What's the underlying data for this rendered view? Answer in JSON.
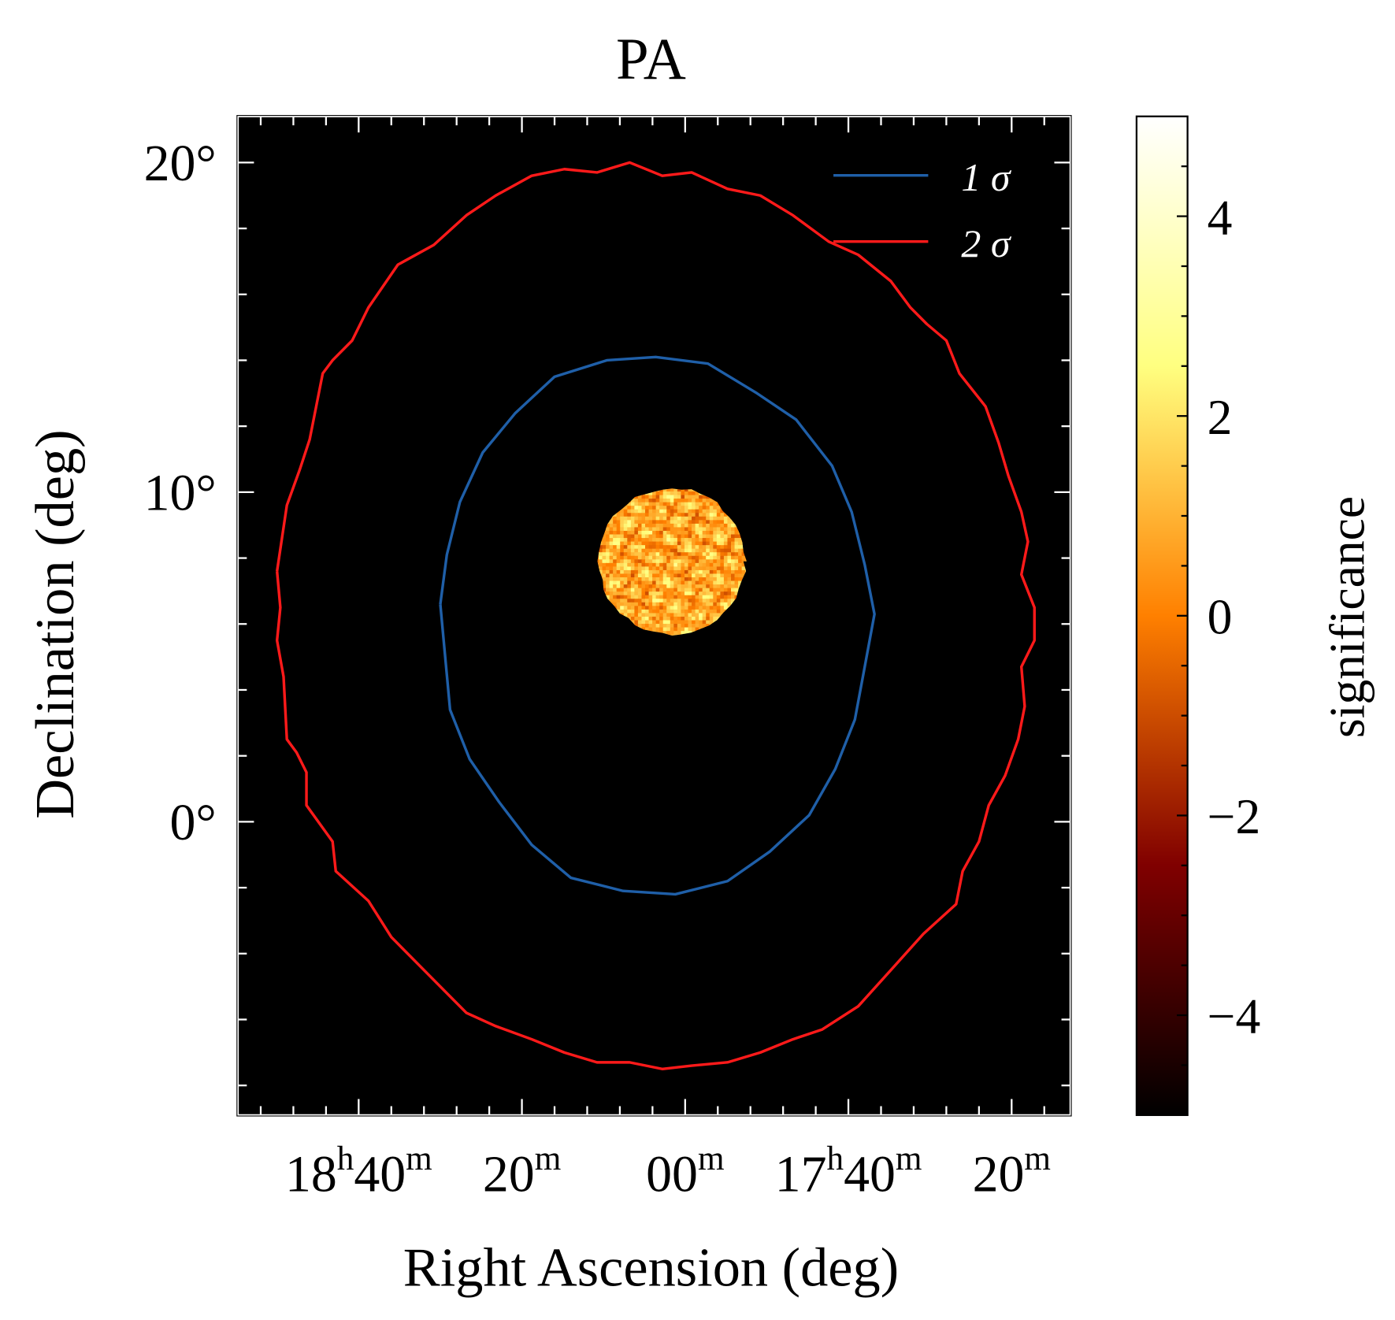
{
  "chart_data": {
    "type": "heatmap",
    "title": "PA",
    "xlabel": "Right Ascension (deg)",
    "ylabel": "Declination (deg)",
    "colorbar_label": "significance",
    "xlim": [
      283.7,
      258.2
    ],
    "ylim": [
      -8.9,
      21.4
    ],
    "clim": [
      -5,
      5
    ],
    "colormap": "afmhot",
    "grid": false,
    "x_ticks": [
      {
        "value": 280,
        "parts": [
          "18",
          "h",
          "40",
          "m"
        ]
      },
      {
        "value": 275,
        "parts": [
          "20",
          "m"
        ]
      },
      {
        "value": 270,
        "parts": [
          "00",
          "m"
        ]
      },
      {
        "value": 265,
        "parts": [
          "17",
          "h",
          "40",
          "m"
        ]
      },
      {
        "value": 260,
        "parts": [
          "20",
          "m"
        ]
      }
    ],
    "y_ticks": [
      {
        "value": 0,
        "label": "0°"
      },
      {
        "value": 10,
        "label": "10°"
      },
      {
        "value": 20,
        "label": "20°"
      }
    ],
    "colorbar_ticks": [
      {
        "value": -4,
        "label": "−4"
      },
      {
        "value": -2,
        "label": "−2"
      },
      {
        "value": 0,
        "label": "0"
      },
      {
        "value": 2,
        "label": "2"
      },
      {
        "value": 4,
        "label": "4"
      }
    ],
    "legend": {
      "position": "top-right",
      "entries": [
        {
          "label": "1 σ",
          "color": "#1f5fa8"
        },
        {
          "label": "2 σ",
          "color": "#ff1a1a"
        }
      ]
    },
    "significance_patch": {
      "center": [
        270.4,
        7.9
      ],
      "radius_deg": 2.25,
      "typical_range": [
        -1,
        3
      ]
    },
    "series": [
      {
        "name": "1 σ",
        "color": "#1f5fa8",
        "points": [
          [
            277.5,
            6.6
          ],
          [
            277.3,
            8.1
          ],
          [
            276.9,
            9.7
          ],
          [
            276.2,
            11.2
          ],
          [
            275.2,
            12.4
          ],
          [
            274.0,
            13.5
          ],
          [
            272.4,
            14.0
          ],
          [
            270.9,
            14.1
          ],
          [
            269.3,
            13.9
          ],
          [
            267.8,
            13.0
          ],
          [
            266.6,
            12.2
          ],
          [
            265.5,
            10.8
          ],
          [
            264.9,
            9.4
          ],
          [
            264.5,
            7.8
          ],
          [
            264.2,
            6.3
          ],
          [
            264.5,
            4.7
          ],
          [
            264.8,
            3.1
          ],
          [
            265.4,
            1.6
          ],
          [
            266.2,
            0.2
          ],
          [
            267.4,
            -0.9
          ],
          [
            268.7,
            -1.8
          ],
          [
            270.3,
            -2.2
          ],
          [
            271.9,
            -2.1
          ],
          [
            273.5,
            -1.7
          ],
          [
            274.7,
            -0.7
          ],
          [
            275.7,
            0.6
          ],
          [
            276.6,
            1.9
          ],
          [
            277.2,
            3.4
          ],
          [
            277.5,
            6.6
          ]
        ]
      },
      {
        "name": "2 σ",
        "color": "#ff1a1a",
        "points": [
          [
            282.5,
            7.6
          ],
          [
            282.2,
            9.6
          ],
          [
            281.8,
            10.7
          ],
          [
            281.5,
            11.6
          ],
          [
            281.3,
            12.6
          ],
          [
            281.1,
            13.6
          ],
          [
            280.8,
            14.0
          ],
          [
            280.2,
            14.6
          ],
          [
            279.7,
            15.6
          ],
          [
            278.8,
            16.9
          ],
          [
            277.7,
            17.5
          ],
          [
            276.7,
            18.4
          ],
          [
            275.8,
            19.0
          ],
          [
            274.7,
            19.6
          ],
          [
            273.7,
            19.8
          ],
          [
            272.7,
            19.7
          ],
          [
            271.7,
            20.0
          ],
          [
            270.7,
            19.6
          ],
          [
            269.8,
            19.7
          ],
          [
            268.7,
            19.2
          ],
          [
            267.7,
            19.0
          ],
          [
            266.7,
            18.4
          ],
          [
            265.6,
            17.6
          ],
          [
            264.7,
            17.2
          ],
          [
            263.7,
            16.4
          ],
          [
            263.1,
            15.6
          ],
          [
            262.6,
            15.1
          ],
          [
            262.0,
            14.6
          ],
          [
            261.6,
            13.6
          ],
          [
            260.8,
            12.6
          ],
          [
            260.4,
            11.5
          ],
          [
            260.1,
            10.5
          ],
          [
            259.7,
            9.4
          ],
          [
            259.5,
            8.5
          ],
          [
            259.7,
            7.5
          ],
          [
            259.3,
            6.5
          ],
          [
            259.3,
            5.5
          ],
          [
            259.7,
            4.7
          ],
          [
            259.6,
            3.5
          ],
          [
            259.8,
            2.5
          ],
          [
            260.2,
            1.4
          ],
          [
            260.7,
            0.5
          ],
          [
            261.0,
            -0.6
          ],
          [
            261.5,
            -1.5
          ],
          [
            261.7,
            -2.5
          ],
          [
            262.7,
            -3.4
          ],
          [
            263.7,
            -4.5
          ],
          [
            264.7,
            -5.6
          ],
          [
            265.8,
            -6.3
          ],
          [
            266.7,
            -6.6
          ],
          [
            267.7,
            -7.0
          ],
          [
            268.7,
            -7.3
          ],
          [
            269.8,
            -7.4
          ],
          [
            270.7,
            -7.5
          ],
          [
            271.7,
            -7.3
          ],
          [
            272.7,
            -7.3
          ],
          [
            273.7,
            -7.0
          ],
          [
            274.7,
            -6.6
          ],
          [
            275.8,
            -6.2
          ],
          [
            276.7,
            -5.8
          ],
          [
            277.8,
            -4.7
          ],
          [
            278.8,
            -3.7
          ],
          [
            279.0,
            -3.5
          ],
          [
            279.7,
            -2.4
          ],
          [
            280.7,
            -1.5
          ],
          [
            280.8,
            -0.6
          ],
          [
            281.6,
            0.5
          ],
          [
            281.6,
            1.5
          ],
          [
            281.9,
            2.1
          ],
          [
            282.2,
            2.5
          ],
          [
            282.3,
            4.4
          ],
          [
            282.5,
            5.5
          ],
          [
            282.4,
            6.5
          ],
          [
            282.5,
            7.6
          ]
        ]
      }
    ]
  }
}
